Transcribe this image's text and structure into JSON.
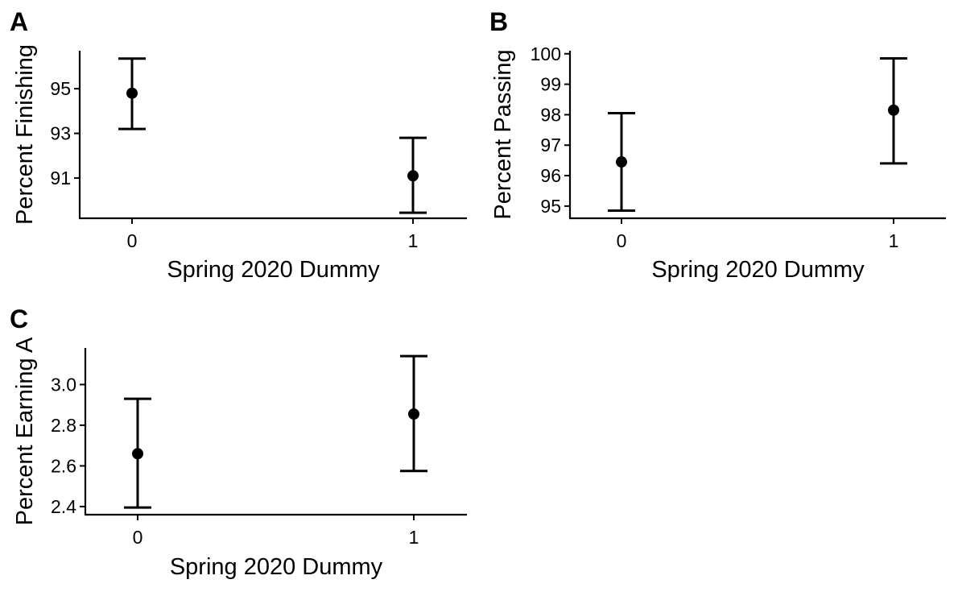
{
  "chart_data": [
    {
      "panel": "A",
      "type": "scatter",
      "error_bars": true,
      "xlabel": "Spring 2020 Dummy",
      "ylabel": "Percent Finishing",
      "x_ticks": [
        "0",
        "1"
      ],
      "y_ticks": [
        "91",
        "93",
        "95"
      ],
      "ylim": [
        89.2,
        96.7
      ],
      "points": [
        {
          "x": "0",
          "y": 94.8,
          "lower": 93.2,
          "upper": 96.35
        },
        {
          "x": "1",
          "y": 91.1,
          "lower": 89.45,
          "upper": 92.8
        }
      ],
      "grid": false,
      "legend": "none"
    },
    {
      "panel": "B",
      "type": "scatter",
      "error_bars": true,
      "xlabel": "Spring 2020 Dummy",
      "ylabel": "Percent Passing",
      "x_ticks": [
        "0",
        "1"
      ],
      "y_ticks": [
        "95",
        "96",
        "97",
        "98",
        "99",
        "100"
      ],
      "ylim": [
        94.6,
        100.1
      ],
      "points": [
        {
          "x": "0",
          "y": 96.45,
          "lower": 94.85,
          "upper": 98.05
        },
        {
          "x": "1",
          "y": 98.15,
          "lower": 96.4,
          "upper": 99.85
        }
      ],
      "grid": false,
      "legend": "none"
    },
    {
      "panel": "C",
      "type": "scatter",
      "error_bars": true,
      "xlabel": "Spring 2020 Dummy",
      "ylabel": "Percent Earning A",
      "x_ticks": [
        "0",
        "1"
      ],
      "y_ticks": [
        "2.4",
        "2.6",
        "2.8",
        "3.0"
      ],
      "ylim": [
        2.36,
        3.18
      ],
      "points": [
        {
          "x": "0",
          "y": 2.66,
          "lower": 2.395,
          "upper": 2.93
        },
        {
          "x": "1",
          "y": 2.855,
          "lower": 2.575,
          "upper": 3.14
        }
      ],
      "grid": false,
      "legend": "none"
    }
  ]
}
